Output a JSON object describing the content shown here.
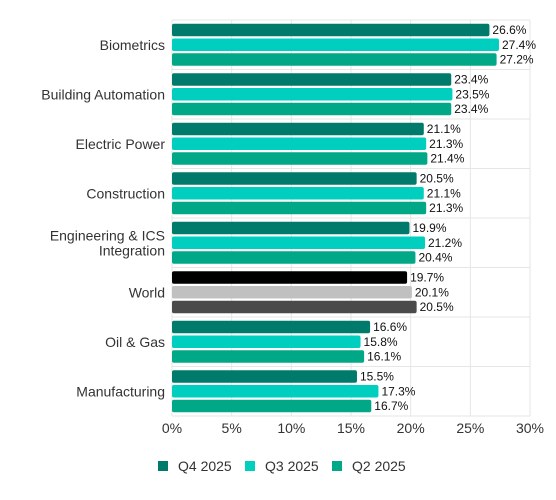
{
  "chart_data": {
    "type": "bar",
    "orientation": "horizontal",
    "categories": [
      [
        "Biometrics"
      ],
      [
        "Building Automation"
      ],
      [
        "Electric Power"
      ],
      [
        "Construction"
      ],
      [
        "Engineering & ICS",
        "Integration"
      ],
      [
        "World"
      ],
      [
        "Oil & Gas"
      ],
      [
        "Manufacturing"
      ]
    ],
    "series": [
      {
        "name": "Q4 2025",
        "color": "#007a6a",
        "values": [
          26.6,
          23.4,
          21.1,
          20.5,
          19.9,
          19.7,
          16.6,
          15.5
        ],
        "labels": [
          "26.6%",
          "23.4%",
          "21.1%",
          "20.5%",
          "19.9%",
          "19.7%",
          "16.6%",
          "15.5%"
        ]
      },
      {
        "name": "Q3 2025",
        "color": "#00cfc0",
        "values": [
          27.4,
          23.5,
          21.3,
          21.1,
          21.2,
          20.1,
          15.8,
          17.3
        ],
        "labels": [
          "27.4%",
          "23.5%",
          "21.3%",
          "21.1%",
          "21.2%",
          "20.1%",
          "15.8%",
          "17.3%"
        ]
      },
      {
        "name": "Q2 2025",
        "color": "#00a887",
        "values": [
          27.2,
          23.4,
          21.4,
          21.3,
          20.4,
          20.5,
          16.1,
          16.7
        ],
        "labels": [
          "27.2%",
          "23.4%",
          "21.4%",
          "21.3%",
          "20.4%",
          "20.5%",
          "16.1%",
          "16.7%"
        ]
      }
    ],
    "highlight_category": "World",
    "highlight_colors": [
      "#000000",
      "#c0c0c0",
      "#4a4a4a"
    ],
    "xlim": [
      0,
      30
    ],
    "x_ticks": [
      0,
      5,
      10,
      15,
      20,
      25,
      30
    ],
    "x_tick_labels": [
      "0%",
      "5%",
      "10%",
      "15%",
      "20%",
      "25%",
      "30%"
    ],
    "grid": true,
    "legend_position": "bottom"
  }
}
